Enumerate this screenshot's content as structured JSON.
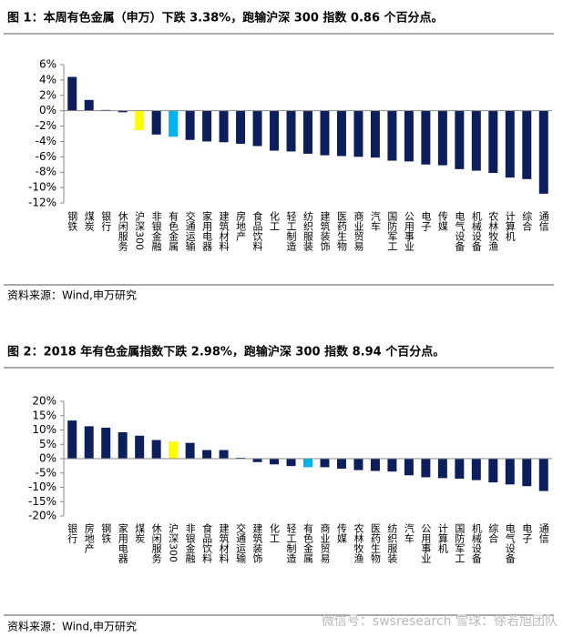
{
  "chart_data": [
    {
      "type": "bar",
      "title": "图 1：本周有色金属（申万）下跌 3.38%，跑输沪深 300 指数 0.86 个百分点。",
      "source": "资料来源：Wind,申万研究",
      "categories": [
        "钢铁",
        "煤炭",
        "银行",
        "休闲服务",
        "沪深300",
        "非银金融",
        "有色金属",
        "交通运输",
        "家用电器",
        "建筑材料",
        "房地产",
        "食品饮料",
        "化工",
        "轻工制造",
        "纺织服装",
        "建筑装饰",
        "医药生物",
        "商业贸易",
        "汽车",
        "国防军工",
        "公用事业",
        "电子",
        "传媒",
        "电气设备",
        "机械设备",
        "农林牧渔",
        "计算机",
        "综合",
        "通信"
      ],
      "values": [
        4.4,
        1.4,
        0.1,
        -0.2,
        -2.52,
        -3.1,
        -3.38,
        -3.8,
        -4.0,
        -4.1,
        -4.3,
        -4.6,
        -5.2,
        -5.3,
        -5.6,
        -5.8,
        -5.9,
        -6.0,
        -6.1,
        -6.5,
        -6.6,
        -7.0,
        -7.1,
        -7.6,
        -7.8,
        -8.1,
        -8.7,
        -8.9,
        -10.8
      ],
      "colors": [
        "#0c1f5c",
        "#0c1f5c",
        "#0c1f5c",
        "#0c1f5c",
        "#ffff00",
        "#0c1f5c",
        "#00b0f0",
        "#0c1f5c",
        "#0c1f5c",
        "#0c1f5c",
        "#0c1f5c",
        "#0c1f5c",
        "#0c1f5c",
        "#0c1f5c",
        "#0c1f5c",
        "#0c1f5c",
        "#0c1f5c",
        "#0c1f5c",
        "#0c1f5c",
        "#0c1f5c",
        "#0c1f5c",
        "#0c1f5c",
        "#0c1f5c",
        "#0c1f5c",
        "#0c1f5c",
        "#0c1f5c",
        "#0c1f5c",
        "#0c1f5c",
        "#0c1f5c"
      ],
      "ylim": [
        -12,
        6
      ],
      "yticks": [
        {
          "value": -12,
          "label": "-12%"
        },
        {
          "value": -10,
          "label": "-10%"
        },
        {
          "value": -8,
          "label": "-8%"
        },
        {
          "value": -6,
          "label": "-6%"
        },
        {
          "value": -4,
          "label": "-4%"
        },
        {
          "value": -2,
          "label": "-2%"
        },
        {
          "value": 0,
          "label": "0%"
        },
        {
          "value": 2,
          "label": "2%"
        },
        {
          "value": 4,
          "label": "4%"
        },
        {
          "value": 6,
          "label": "6%"
        }
      ]
    },
    {
      "type": "bar",
      "title": "图 2：2018 年有色金属指数下跌 2.98%，跑输沪深 300 指数 8.94 个百分点。",
      "source": "资料来源：Wind,申万研究",
      "watermark": "微信号：swsresearch  雪球：徐若旭团队",
      "categories": [
        "银行",
        "房地产",
        "钢铁",
        "家用电器",
        "煤炭",
        "休闲服务",
        "沪深300",
        "非银金融",
        "食品饮料",
        "建筑材料",
        "交通运输",
        "建筑装饰",
        "化工",
        "轻工制造",
        "有色金属",
        "商业贸易",
        "传媒",
        "农林牧渔",
        "医药生物",
        "纺织服装",
        "汽车",
        "公用事业",
        "计算机",
        "国防军工",
        "机械设备",
        "综合",
        "电气设备",
        "电子",
        "通信"
      ],
      "values": [
        13.3,
        11.3,
        10.8,
        9.2,
        8.0,
        6.5,
        5.96,
        5.5,
        3.0,
        3.0,
        0.3,
        -1.2,
        -2.0,
        -2.6,
        -2.98,
        -3.0,
        -3.5,
        -4.0,
        -4.3,
        -4.5,
        -5.8,
        -6.5,
        -6.8,
        -7.0,
        -7.5,
        -8.3,
        -9.0,
        -9.6,
        -11.3
      ],
      "colors": [
        "#0c1f5c",
        "#0c1f5c",
        "#0c1f5c",
        "#0c1f5c",
        "#0c1f5c",
        "#0c1f5c",
        "#ffff00",
        "#0c1f5c",
        "#0c1f5c",
        "#0c1f5c",
        "#0c1f5c",
        "#0c1f5c",
        "#0c1f5c",
        "#0c1f5c",
        "#00b0f0",
        "#0c1f5c",
        "#0c1f5c",
        "#0c1f5c",
        "#0c1f5c",
        "#0c1f5c",
        "#0c1f5c",
        "#0c1f5c",
        "#0c1f5c",
        "#0c1f5c",
        "#0c1f5c",
        "#0c1f5c",
        "#0c1f5c",
        "#0c1f5c",
        "#0c1f5c"
      ],
      "ylim": [
        -20,
        20
      ],
      "yticks": [
        {
          "value": -20,
          "label": "-20%"
        },
        {
          "value": -15,
          "label": "-15%"
        },
        {
          "value": -10,
          "label": "-10%"
        },
        {
          "value": -5,
          "label": "-5%"
        },
        {
          "value": 0,
          "label": "0%"
        },
        {
          "value": 5,
          "label": "5%"
        },
        {
          "value": 10,
          "label": "10%"
        },
        {
          "value": 15,
          "label": "15%"
        },
        {
          "value": 20,
          "label": "20%"
        }
      ]
    }
  ]
}
